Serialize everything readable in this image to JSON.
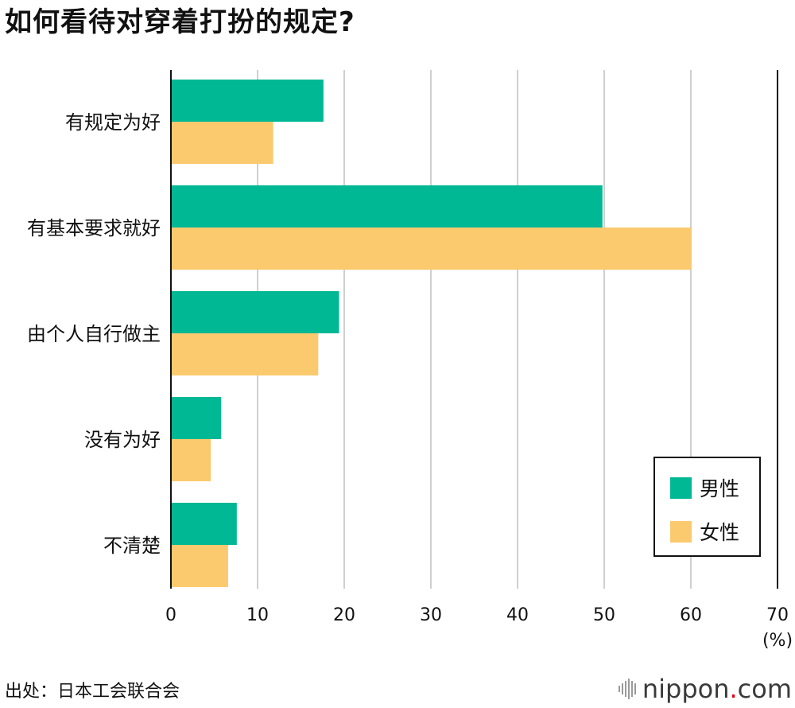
{
  "title": "如何看待对穿着打扮的规定?",
  "source": "出处：日本工会联合会",
  "brand": {
    "name": "nippon",
    "dot": ".",
    "tld": "com",
    "dot_color": "#e60012"
  },
  "chart_data": {
    "type": "bar",
    "orientation": "horizontal",
    "categories": [
      "有规定为好",
      "有基本要求就好",
      "由个人自行做主",
      "没有为好",
      "不清楚"
    ],
    "series": [
      {
        "name": "男性",
        "color": "#00b894",
        "values": [
          17.6,
          49.8,
          19.4,
          5.8,
          7.6
        ]
      },
      {
        "name": "女性",
        "color": "#fbca6e",
        "values": [
          11.8,
          60.0,
          17.0,
          4.6,
          6.6
        ]
      }
    ],
    "xlim": [
      0,
      70
    ],
    "xticks": [
      0,
      10,
      20,
      30,
      40,
      50,
      60,
      70
    ],
    "unit_label": "(%)",
    "grid": true,
    "legend_position": "bottom-right"
  }
}
